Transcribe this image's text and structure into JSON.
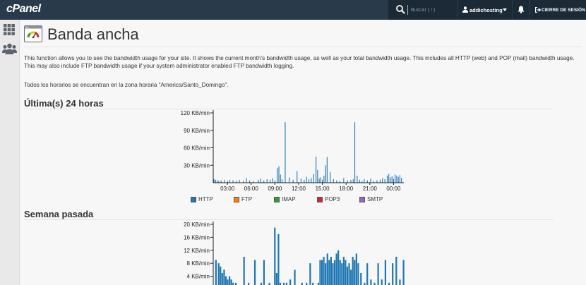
{
  "header": {
    "logo": "cPanel",
    "search_placeholder": "Buscar ( / )",
    "username": "addichosting",
    "logout_label": "CIERRE DE SESIÓN"
  },
  "icons": {
    "sidebar": [
      "apps-grid-icon",
      "users-icon"
    ],
    "header": [
      "search-icon",
      "user-icon",
      "caret-down-icon",
      "bell-icon",
      "logout-icon"
    ],
    "title": "bandwidth-gauge-icon"
  },
  "page": {
    "title": "Banda ancha",
    "description": "This function allows you to see the bandwidth usage for your site. It shows the current month’s bandwidth usage, as well as your total bandwidth usage. This includes all HTTP (web) and POP (mail) bandwidth usage. This may also include FTP bandwidth usage if your system administrator enabled FTP bandwidth logging.",
    "timezone_note": "Todos los horarios se encuentran en la zona horaria “America/Santo_Domingo”."
  },
  "sections": {
    "last24": "Última(s) 24 horas",
    "lastweek": "Semana pasada"
  },
  "legend": [
    {
      "label": "HTTP",
      "color": "#1f77b4"
    },
    {
      "label": "FTP",
      "color": "#ff7f0e"
    },
    {
      "label": "IMAP",
      "color": "#2ca02c"
    },
    {
      "label": "POP3",
      "color": "#d62728"
    },
    {
      "label": "SMTP",
      "color": "#9467bd"
    }
  ],
  "chart_data": [
    {
      "type": "bar",
      "title": "Última(s) 24 horas",
      "unit": "KB/min",
      "xlim": [
        1.2,
        25.3
      ],
      "ylim": [
        0,
        120
      ],
      "yticks": [
        30,
        60,
        90,
        120
      ],
      "ytick_labels": [
        "30 KB/min",
        "60 KB/min",
        "90 KB/min",
        "120 KB/min"
      ],
      "xticks": [
        3,
        6,
        9,
        12,
        15,
        18,
        21,
        24
      ],
      "xtick_labels": [
        "03:00",
        "06:00",
        "09:00",
        "12:00",
        "15:00",
        "18:00",
        "21:00",
        "00:00"
      ],
      "grid": false,
      "series": [
        {
          "name": "HTTP",
          "x": [
            1.3,
            1.5,
            1.7,
            1.9,
            2.2,
            2.6,
            3.0,
            3.3,
            3.7,
            4.1,
            4.5,
            5.0,
            5.4,
            5.8,
            6.3,
            6.9,
            7.2,
            7.6,
            8.0,
            8.4,
            8.7,
            9.0,
            9.3,
            9.5,
            9.7,
            9.9,
            10.3,
            10.8,
            11.3,
            11.8,
            12.3,
            12.7,
            13.0,
            13.3,
            13.6,
            13.9,
            14.2,
            14.4,
            14.6,
            14.8,
            15.0,
            15.2,
            15.4,
            15.6,
            16.0,
            16.4,
            16.8,
            17.2,
            17.7,
            18.2,
            18.6,
            18.9,
            19.1,
            19.4,
            19.7,
            20.0,
            20.3,
            20.7,
            21.1,
            21.5,
            21.9,
            22.3,
            22.6,
            22.9,
            23.2,
            23.4,
            23.6,
            23.8,
            24.0,
            24.2,
            24.4,
            24.6,
            24.8,
            25.0
          ],
          "values": [
            6,
            5,
            4,
            3,
            4,
            5,
            3,
            5,
            4,
            3,
            5,
            3,
            8,
            4,
            3,
            5,
            7,
            4,
            6,
            5,
            8,
            4,
            25,
            28,
            14,
            6,
            104,
            9,
            5,
            20,
            7,
            5,
            10,
            6,
            8,
            15,
            45,
            22,
            7,
            9,
            5,
            12,
            30,
            44,
            18,
            6,
            4,
            3,
            8,
            4,
            5,
            6,
            104,
            12,
            5,
            3,
            6,
            4,
            7,
            3,
            4,
            5,
            8,
            6,
            12,
            15,
            9,
            11,
            7,
            14,
            12,
            10,
            13,
            8
          ]
        }
      ]
    },
    {
      "type": "bar",
      "title": "Semana pasada",
      "unit": "KB/min",
      "ylim": [
        0,
        20
      ],
      "yticks": [
        4,
        8,
        12,
        16,
        20
      ],
      "ytick_labels": [
        "4 KB/min",
        "8 KB/min",
        "12 KB/min",
        "16 KB/min",
        "20 KB/min"
      ],
      "grid": false,
      "series": [
        {
          "name": "HTTP",
          "x": [
            0.3,
            0.6,
            0.8,
            1.0,
            1.2,
            1.4,
            1.6,
            1.8,
            2.0,
            2.2,
            2.5,
            3.0,
            3.4,
            3.9,
            4.2,
            4.6,
            5.0,
            5.3,
            5.6,
            5.9,
            6.2,
            6.5,
            6.8,
            7.0,
            7.2,
            7.4,
            7.6,
            7.8,
            8.1,
            8.5,
            9.0,
            9.4,
            9.8,
            10.3,
            10.7,
            11.0,
            11.3,
            11.6,
            11.8,
            12.0,
            12.2,
            12.4,
            12.6,
            12.8,
            13.0,
            13.2,
            13.4,
            13.6,
            13.8,
            14.0,
            14.2,
            14.4,
            14.6,
            14.8,
            15.0,
            15.2,
            15.4,
            15.6,
            15.8,
            16.0,
            16.3,
            16.7,
            17.0,
            17.4,
            17.8,
            18.2,
            18.6,
            19.0,
            19.4,
            19.8,
            20.2,
            20.6,
            21.0
          ],
          "values": [
            9,
            8,
            7,
            5,
            6,
            4,
            3,
            4,
            3,
            2,
            2,
            1,
            10,
            2,
            1,
            9,
            1,
            2,
            9,
            1,
            2,
            1,
            19,
            5,
            17,
            2,
            1,
            2,
            2,
            3,
            6,
            1,
            2,
            2,
            8,
            2,
            1,
            2,
            9,
            9,
            10,
            8,
            11,
            9,
            10,
            8,
            9,
            11,
            12,
            9,
            8,
            10,
            9,
            7,
            8,
            6,
            10,
            9,
            11,
            8,
            5,
            2,
            8,
            3,
            2,
            8,
            3,
            9,
            2,
            8,
            10,
            3,
            9
          ]
        }
      ]
    }
  ]
}
